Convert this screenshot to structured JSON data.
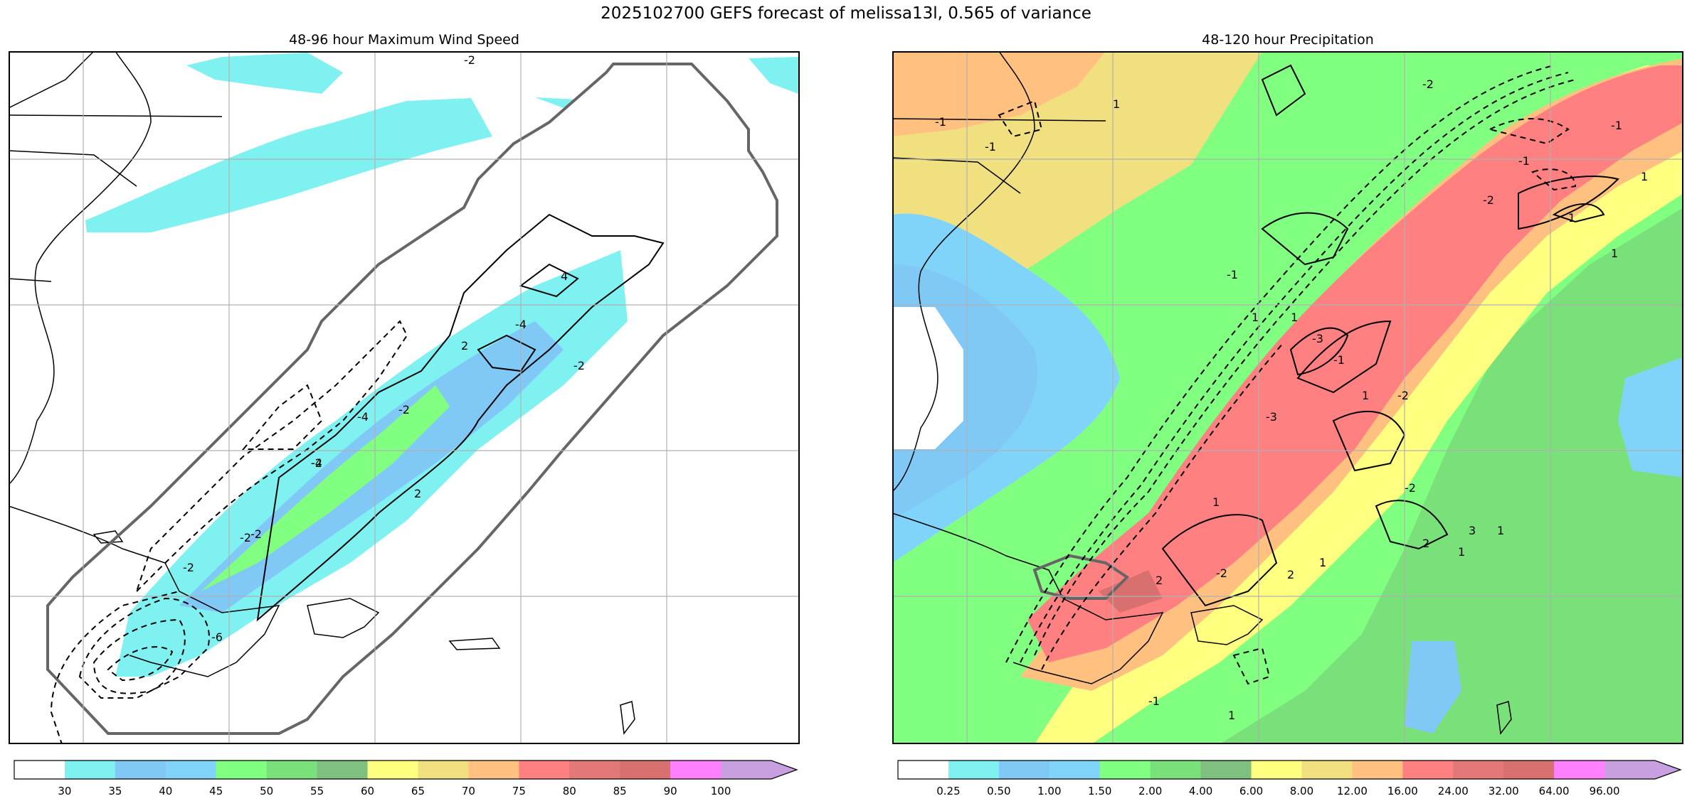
{
  "figure": {
    "title": "2025102700 GEFS forecast of melissa13l, 0.565 of variance"
  },
  "panels": [
    {
      "id": "wind",
      "title": "48-96 hour Maximum Wind Speed",
      "contour_labels": [
        "-2",
        "4",
        "-4",
        "2",
        "-2",
        "-4",
        "-2",
        "2",
        "-2",
        "-2",
        "-2",
        "-4",
        "-6",
        "-2"
      ],
      "colorbar": {
        "ticks": [
          "30",
          "35",
          "40",
          "45",
          "50",
          "55",
          "60",
          "65",
          "70",
          "75",
          "80",
          "85",
          "90",
          "100"
        ],
        "colors": [
          "#ffffff",
          "#7ff1f1",
          "#80c8f5",
          "#80d4fa",
          "#80ff80",
          "#7ae07a",
          "#7fbf7f",
          "#ffff80",
          "#f1e080",
          "#ffc080",
          "#ff8080",
          "#e27878",
          "#d97070",
          "#ff80ff",
          "#c8a0e0"
        ]
      }
    },
    {
      "id": "precip",
      "title": "48-120 hour Precipitation",
      "contour_labels": [
        "-1",
        "-1",
        "1",
        "-2",
        "-1",
        "1",
        "-1",
        "1",
        "-2",
        "1",
        "-3",
        "-2",
        "1",
        "-1",
        "1",
        "1",
        "2",
        "-2",
        "3",
        "2",
        "1",
        "2",
        "1",
        "1",
        "-1",
        "1",
        "-1",
        "1",
        "-3",
        "-2"
      ],
      "colorbar": {
        "ticks": [
          "0.25",
          "0.50",
          "1.00",
          "1.50",
          "2.00",
          "4.00",
          "6.00",
          "8.00",
          "12.00",
          "16.00",
          "24.00",
          "32.00",
          "64.00",
          "96.00"
        ],
        "colors": [
          "#ffffff",
          "#7ff1f1",
          "#80c8f5",
          "#80d4fa",
          "#80ff80",
          "#7ae07a",
          "#7fbf7f",
          "#ffff80",
          "#f1e080",
          "#ffc080",
          "#ff8080",
          "#e27878",
          "#d97070",
          "#ff80ff",
          "#c8a0e0"
        ]
      }
    }
  ]
}
